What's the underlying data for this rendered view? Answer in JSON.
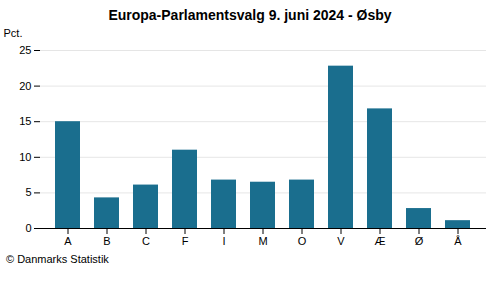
{
  "chart_data": {
    "type": "bar",
    "title": "Europa-Parlamentsvalg 9. juni 2024 - Øsby",
    "categories": [
      "A",
      "B",
      "C",
      "F",
      "I",
      "M",
      "O",
      "V",
      "Æ",
      "Ø",
      "Å"
    ],
    "values": [
      15.0,
      4.3,
      6.1,
      11.0,
      6.8,
      6.5,
      6.8,
      22.8,
      16.8,
      2.8,
      1.1
    ],
    "color": "#1a6e8e",
    "ylabel": "Pct.",
    "ylim": [
      0,
      25
    ],
    "yticks": [
      0,
      5,
      10,
      15,
      20,
      25
    ],
    "grid": true,
    "caption": "© Danmarks Statistik"
  }
}
